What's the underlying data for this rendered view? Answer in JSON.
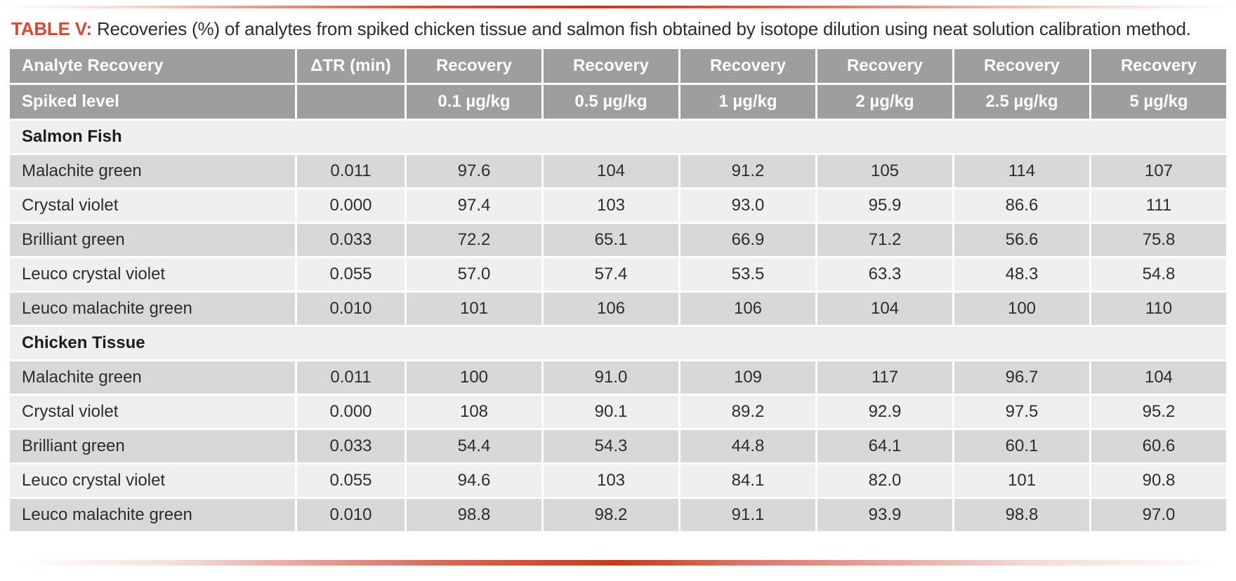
{
  "title": {
    "label": "TABLE V:",
    "text": " Recoveries (%) of analytes from spiked chicken tissue and salmon fish obtained by isotope dilution using neat solution calibration method."
  },
  "table": {
    "header_row1": [
      "Analyte Recovery",
      "ΔTR (min)",
      "Recovery",
      "Recovery",
      "Recovery",
      "Recovery",
      "Recovery",
      "Recovery"
    ],
    "header_row2": [
      "Spiked level",
      "",
      "0.1 µg/kg",
      "0.5 µg/kg",
      "1 µg/kg",
      "2 µg/kg",
      "2.5 µg/kg",
      "5 µg/kg"
    ],
    "sections": [
      {
        "name": "Salmon Fish",
        "rows": [
          {
            "analyte": "Malachite green",
            "dtr": "0.011",
            "values": [
              "97.6",
              "104",
              "91.2",
              "105",
              "114",
              "107"
            ]
          },
          {
            "analyte": "Crystal violet",
            "dtr": "0.000",
            "values": [
              "97.4",
              "103",
              "93.0",
              "95.9",
              "86.6",
              "111"
            ]
          },
          {
            "analyte": "Brilliant green",
            "dtr": "0.033",
            "values": [
              "72.2",
              "65.1",
              "66.9",
              "71.2",
              "56.6",
              "75.8"
            ]
          },
          {
            "analyte": "Leuco crystal violet",
            "dtr": "0.055",
            "values": [
              "57.0",
              "57.4",
              "53.5",
              "63.3",
              "48.3",
              "54.8"
            ]
          },
          {
            "analyte": "Leuco malachite green",
            "dtr": "0.010",
            "values": [
              "101",
              "106",
              "106",
              "104",
              "100",
              "110"
            ]
          }
        ]
      },
      {
        "name": "Chicken Tissue",
        "rows": [
          {
            "analyte": "Malachite green",
            "dtr": "0.011",
            "values": [
              "100",
              "91.0",
              "109",
              "117",
              "96.7",
              "104"
            ]
          },
          {
            "analyte": "Crystal violet",
            "dtr": "0.000",
            "values": [
              "108",
              "90.1",
              "89.2",
              "92.9",
              "97.5",
              "95.2"
            ]
          },
          {
            "analyte": "Brilliant green",
            "dtr": "0.033",
            "values": [
              "54.4",
              "54.3",
              "44.8",
              "64.1",
              "60.1",
              "60.6"
            ]
          },
          {
            "analyte": "Leuco crystal violet",
            "dtr": "0.055",
            "values": [
              "94.6",
              "103",
              "84.1",
              "82.0",
              "101",
              "90.8"
            ]
          },
          {
            "analyte": "Leuco malachite green",
            "dtr": "0.010",
            "values": [
              "98.8",
              "98.2",
              "91.1",
              "93.9",
              "98.8",
              "97.0"
            ]
          }
        ]
      }
    ]
  },
  "colors": {
    "accent_red": "#c23a22",
    "title_red": "#d8472f",
    "header_gray": "#9e9e9e",
    "row_dark": "#d8d8d8",
    "row_light": "#efefef",
    "text": "#2d2d2d"
  }
}
